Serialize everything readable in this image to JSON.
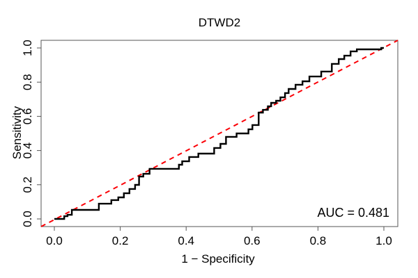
{
  "title": "DTWD2",
  "annotation": {
    "text": "AUC = 0.481"
  },
  "colors": {
    "background": "#ffffff",
    "roc_curve": "#000000",
    "diagonal": "#fb0006",
    "axis": "#555555",
    "text": "#000000"
  },
  "chart_data": {
    "type": "line",
    "title": "DTWD2",
    "xlabel": "1 − Specificity",
    "ylabel": "Sensitivity",
    "xlim": [
      0.0,
      1.0
    ],
    "ylim": [
      0.0,
      1.0
    ],
    "grid": false,
    "legend_position": "none",
    "x_tick_labels": [
      "0.0",
      "0.2",
      "0.4",
      "0.6",
      "0.8",
      "1.0"
    ],
    "y_tick_labels": [
      "0.0",
      "0.2",
      "0.4",
      "0.6",
      "0.8",
      "1.0"
    ],
    "x_ticks": [
      0.0,
      0.2,
      0.4,
      0.6,
      0.8,
      1.0
    ],
    "y_ticks": [
      0.0,
      0.2,
      0.4,
      0.6,
      0.8,
      1.0
    ],
    "auc": 0.481,
    "annotation": "AUC = 0.481",
    "series": [
      {
        "name": "ROC step curve",
        "style": "step-solid",
        "color": "#000000",
        "line_width": 2.4,
        "points": [
          [
            0.0,
            0.0
          ],
          [
            0.03,
            0.0
          ],
          [
            0.03,
            0.016
          ],
          [
            0.04,
            0.016
          ],
          [
            0.04,
            0.024
          ],
          [
            0.053,
            0.024
          ],
          [
            0.053,
            0.053
          ],
          [
            0.135,
            0.053
          ],
          [
            0.135,
            0.089
          ],
          [
            0.173,
            0.089
          ],
          [
            0.173,
            0.11
          ],
          [
            0.194,
            0.11
          ],
          [
            0.194,
            0.126
          ],
          [
            0.211,
            0.126
          ],
          [
            0.211,
            0.15
          ],
          [
            0.228,
            0.15
          ],
          [
            0.228,
            0.175
          ],
          [
            0.245,
            0.175
          ],
          [
            0.245,
            0.199
          ],
          [
            0.257,
            0.199
          ],
          [
            0.257,
            0.248
          ],
          [
            0.27,
            0.248
          ],
          [
            0.27,
            0.264
          ],
          [
            0.289,
            0.264
          ],
          [
            0.289,
            0.293
          ],
          [
            0.378,
            0.293
          ],
          [
            0.378,
            0.317
          ],
          [
            0.388,
            0.317
          ],
          [
            0.388,
            0.337
          ],
          [
            0.409,
            0.337
          ],
          [
            0.409,
            0.362
          ],
          [
            0.437,
            0.362
          ],
          [
            0.437,
            0.382
          ],
          [
            0.485,
            0.382
          ],
          [
            0.485,
            0.415
          ],
          [
            0.504,
            0.415
          ],
          [
            0.504,
            0.439
          ],
          [
            0.521,
            0.439
          ],
          [
            0.521,
            0.48
          ],
          [
            0.553,
            0.48
          ],
          [
            0.553,
            0.5
          ],
          [
            0.589,
            0.5
          ],
          [
            0.589,
            0.524
          ],
          [
            0.601,
            0.524
          ],
          [
            0.601,
            0.549
          ],
          [
            0.62,
            0.549
          ],
          [
            0.62,
            0.622
          ],
          [
            0.633,
            0.622
          ],
          [
            0.633,
            0.638
          ],
          [
            0.648,
            0.638
          ],
          [
            0.648,
            0.659
          ],
          [
            0.658,
            0.659
          ],
          [
            0.658,
            0.679
          ],
          [
            0.673,
            0.679
          ],
          [
            0.673,
            0.691
          ],
          [
            0.686,
            0.691
          ],
          [
            0.686,
            0.711
          ],
          [
            0.7,
            0.711
          ],
          [
            0.7,
            0.736
          ],
          [
            0.711,
            0.736
          ],
          [
            0.711,
            0.76
          ],
          [
            0.732,
            0.76
          ],
          [
            0.732,
            0.785
          ],
          [
            0.753,
            0.785
          ],
          [
            0.753,
            0.805
          ],
          [
            0.774,
            0.805
          ],
          [
            0.774,
            0.833
          ],
          [
            0.81,
            0.833
          ],
          [
            0.81,
            0.862
          ],
          [
            0.842,
            0.862
          ],
          [
            0.842,
            0.907
          ],
          [
            0.863,
            0.907
          ],
          [
            0.863,
            0.935
          ],
          [
            0.88,
            0.935
          ],
          [
            0.88,
            0.955
          ],
          [
            0.899,
            0.955
          ],
          [
            0.899,
            0.98
          ],
          [
            0.918,
            0.98
          ],
          [
            0.918,
            0.992
          ],
          [
            0.992,
            0.992
          ],
          [
            0.992,
            1.0
          ],
          [
            1.0,
            1.0
          ]
        ]
      },
      {
        "name": "Chance reference diagonal",
        "style": "dashed",
        "color": "#fb0006",
        "line_width": 2,
        "points": [
          [
            0.0,
            0.0
          ],
          [
            1.0,
            1.0
          ]
        ]
      }
    ]
  }
}
